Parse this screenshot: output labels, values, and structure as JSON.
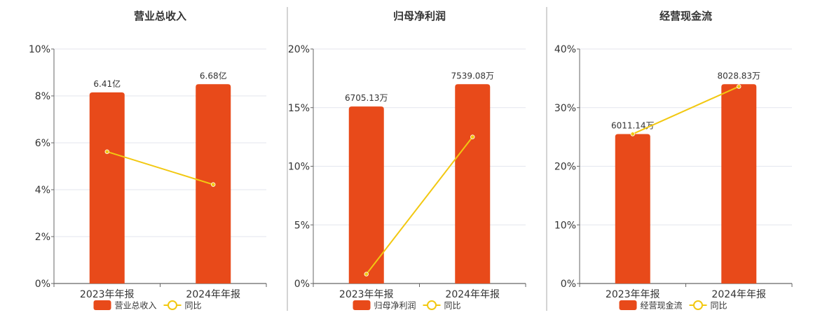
{
  "colors": {
    "bar": "#E84A1A",
    "line": "#F2C811",
    "grid": "#E3E6EE",
    "axis": "#666666",
    "divider": "#AAAAAA"
  },
  "chart_data": [
    {
      "type": "bar",
      "title": "营业总收入",
      "categories": [
        "2023年年报",
        "2024年年报"
      ],
      "series": [
        {
          "name": "营业总收入",
          "type": "bar",
          "values": [
            8.15,
            8.5
          ],
          "labels": [
            "6.41亿",
            "6.68亿"
          ]
        },
        {
          "name": "同比",
          "type": "line",
          "values": [
            5.62,
            4.22
          ]
        }
      ],
      "y_ticks": [
        "0%",
        "2%",
        "4%",
        "6%",
        "8%",
        "10%"
      ],
      "ylim": [
        0,
        10
      ],
      "grid": true,
      "legend": "bottom"
    },
    {
      "type": "bar",
      "title": "归母净利润",
      "categories": [
        "2023年年报",
        "2024年年报"
      ],
      "series": [
        {
          "name": "归母净利润",
          "type": "bar",
          "values": [
            15.1,
            17.0
          ],
          "labels": [
            "6705.13万",
            "7539.08万"
          ]
        },
        {
          "name": "同比",
          "type": "line",
          "values": [
            0.8,
            12.5
          ]
        }
      ],
      "y_ticks": [
        "0%",
        "5%",
        "10%",
        "15%",
        "20%"
      ],
      "ylim": [
        0,
        20
      ],
      "grid": true,
      "legend": "bottom"
    },
    {
      "type": "bar",
      "title": "经营现金流",
      "categories": [
        "2023年年报",
        "2024年年报"
      ],
      "series": [
        {
          "name": "经营现金流",
          "type": "bar",
          "values": [
            25.5,
            34.0
          ],
          "labels": [
            "6011.14万",
            "8028.83万"
          ]
        },
        {
          "name": "同比",
          "type": "line",
          "values": [
            25.5,
            33.6
          ]
        }
      ],
      "y_ticks": [
        "0%",
        "10%",
        "20%",
        "30%",
        "40%"
      ],
      "ylim": [
        0,
        40
      ],
      "grid": true,
      "legend": "bottom"
    }
  ]
}
